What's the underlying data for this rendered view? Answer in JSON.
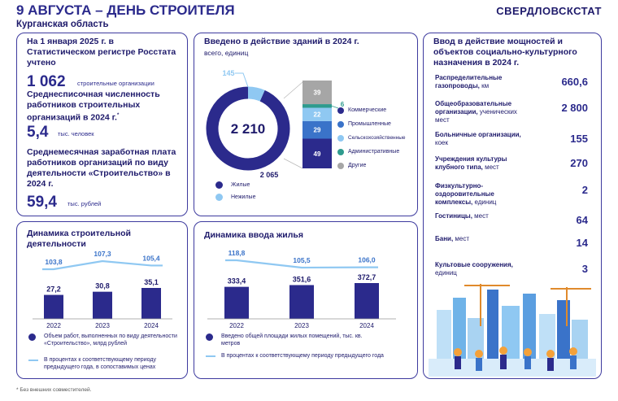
{
  "header": {
    "title": "9 АВГУСТА – ДЕНЬ СТРОИТЕЛЯ",
    "org": "СВЕРДЛОВСКСТАТ",
    "region": "Курганская область"
  },
  "left_panel": {
    "reg_text": "На 1 января 2025 г. в Статистическом регистре Росстата учтено",
    "reg_value": "1 062",
    "reg_unit": "строительные организации",
    "emp_text": "Среднесписочная численность работников строительных организаций в 2024 г.",
    "emp_sup": "*",
    "emp_value": "5,4",
    "emp_unit": "тыс. человек",
    "wage_text": "Среднемесячная заработная плата работников организаций по виду деятельности «Строительство» в 2024 г.",
    "wage_value": "59,4",
    "wage_unit": "тыс. рублей"
  },
  "footnote": "* Без внешних совместителей.",
  "right_panel": {
    "title": "Ввод в действие мощностей и объектов социально-культурного назначения в 2024 г.",
    "items": [
      {
        "label": "Распределительные газопроводы,",
        "unit": "км",
        "value": "660,6"
      },
      {
        "label": "Общеобразовательные организации,",
        "unit": "ученических мест",
        "value": "2 800"
      },
      {
        "label": "Больничные организации,",
        "unit": "коек",
        "value": "155"
      },
      {
        "label": "Учреждения культуры клубного типа,",
        "unit": "мест",
        "value": "270"
      },
      {
        "label": "Физкультурно-оздоровительные комплексы,",
        "unit": "единиц",
        "value": "2"
      },
      {
        "label": "Гостиницы,",
        "unit": "мест",
        "value": "64"
      },
      {
        "label": "Бани,",
        "unit": "мест",
        "value": "14"
      },
      {
        "label": "Культовые сооружения,",
        "unit": "единиц",
        "value": "3"
      }
    ]
  },
  "chart_data": [
    {
      "type": "pie",
      "title": "Введено в действие зданий в 2024 г.",
      "subtitle": "всего, единиц",
      "total_label": "2 210",
      "slices": [
        {
          "name": "Жилые",
          "value": 2065,
          "label": "2 065",
          "color": "#2b2a8c"
        },
        {
          "name": "Нежилые",
          "value": 145,
          "label": "145",
          "color": "#8fc8f2"
        }
      ],
      "breakdown": {
        "type": "stacked_bar",
        "segments": [
          {
            "name": "Коммерческие",
            "value": 49,
            "label": "49",
            "color": "#2b2a8c"
          },
          {
            "name": "Промышленные",
            "value": 29,
            "label": "29",
            "color": "#3a73c9"
          },
          {
            "name": "Сельскохозяйственные",
            "value": 22,
            "label": "22",
            "color": "#8fc8f2"
          },
          {
            "name": "Административные",
            "value": 6,
            "label": "6",
            "color": "#2f9b8e"
          },
          {
            "name": "Другие",
            "value": 39,
            "label": "39",
            "color": "#a6a6a6"
          }
        ]
      }
    },
    {
      "type": "bar",
      "title": "Динамика строительной деятельности",
      "categories": [
        "2022",
        "2023",
        "2024"
      ],
      "bar_series": {
        "name": "Объем работ, выполненных по виду деятельности «Строительство», млрд рублей",
        "values": [
          27.2,
          30.8,
          35.1
        ],
        "labels": [
          "27,2",
          "30,8",
          "35,1"
        ],
        "color": "#2b2a8c"
      },
      "line_series": {
        "name": "В процентах к соответствующему периоду предыдущего года, в сопоставимых ценах",
        "values": [
          103.8,
          107.3,
          105.4
        ],
        "labels": [
          "103,8",
          "107,3",
          "105,4"
        ],
        "color": "#8fc8f2"
      }
    },
    {
      "type": "bar",
      "title": "Динамика ввода жилья",
      "categories": [
        "2022",
        "2023",
        "2024"
      ],
      "bar_series": {
        "name": "Введено общей площади жилых помещений, тыс. кв. метров",
        "values": [
          333.4,
          351.6,
          372.7
        ],
        "labels": [
          "333,4",
          "351,6",
          "372,7"
        ],
        "color": "#2b2a8c"
      },
      "line_series": {
        "name": "В процентах к соответствующему периоду предыдущего года",
        "values": [
          118.8,
          105.5,
          106.0
        ],
        "labels": [
          "118,8",
          "105,5",
          "106,0"
        ],
        "color": "#8fc8f2"
      }
    }
  ]
}
